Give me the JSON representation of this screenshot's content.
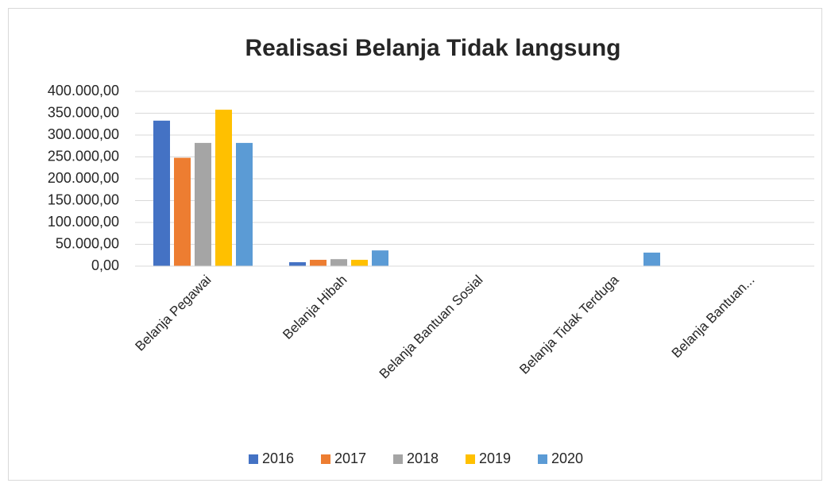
{
  "chart_data": {
    "type": "bar",
    "title": "Realisasi Belanja Tidak langsung",
    "categories": [
      "Belanja Pegawai",
      "Belanja Hibah",
      "Belanja Bantuan Sosial",
      "Belanja Tidak Terduga",
      "Belanja Bantuan..."
    ],
    "series": [
      {
        "name": "2016",
        "color": "#4472c4",
        "values": [
          333000,
          9000,
          0,
          0,
          0
        ]
      },
      {
        "name": "2017",
        "color": "#ed7d31",
        "values": [
          248000,
          14500,
          0,
          0,
          0
        ]
      },
      {
        "name": "2018",
        "color": "#a5a5a5",
        "values": [
          282000,
          16000,
          0,
          0,
          0
        ]
      },
      {
        "name": "2019",
        "color": "#ffc000",
        "values": [
          358000,
          14500,
          0,
          0,
          0
        ]
      },
      {
        "name": "2020",
        "color": "#5b9bd5",
        "values": [
          282000,
          36000,
          0,
          31000,
          0
        ]
      }
    ],
    "ylim": [
      0,
      400000
    ],
    "yticks": [
      {
        "value": 0,
        "label": "0,00"
      },
      {
        "value": 50000,
        "label": "50.000,00"
      },
      {
        "value": 100000,
        "label": "100.000,00"
      },
      {
        "value": 150000,
        "label": "150.000,00"
      },
      {
        "value": 200000,
        "label": "200.000,00"
      },
      {
        "value": 250000,
        "label": "250.000,00"
      },
      {
        "value": 300000,
        "label": "300.000,00"
      },
      {
        "value": 350000,
        "label": "350.000,00"
      },
      {
        "value": 400000,
        "label": "400.000,00"
      }
    ],
    "grid": true,
    "legend": "bottom"
  }
}
